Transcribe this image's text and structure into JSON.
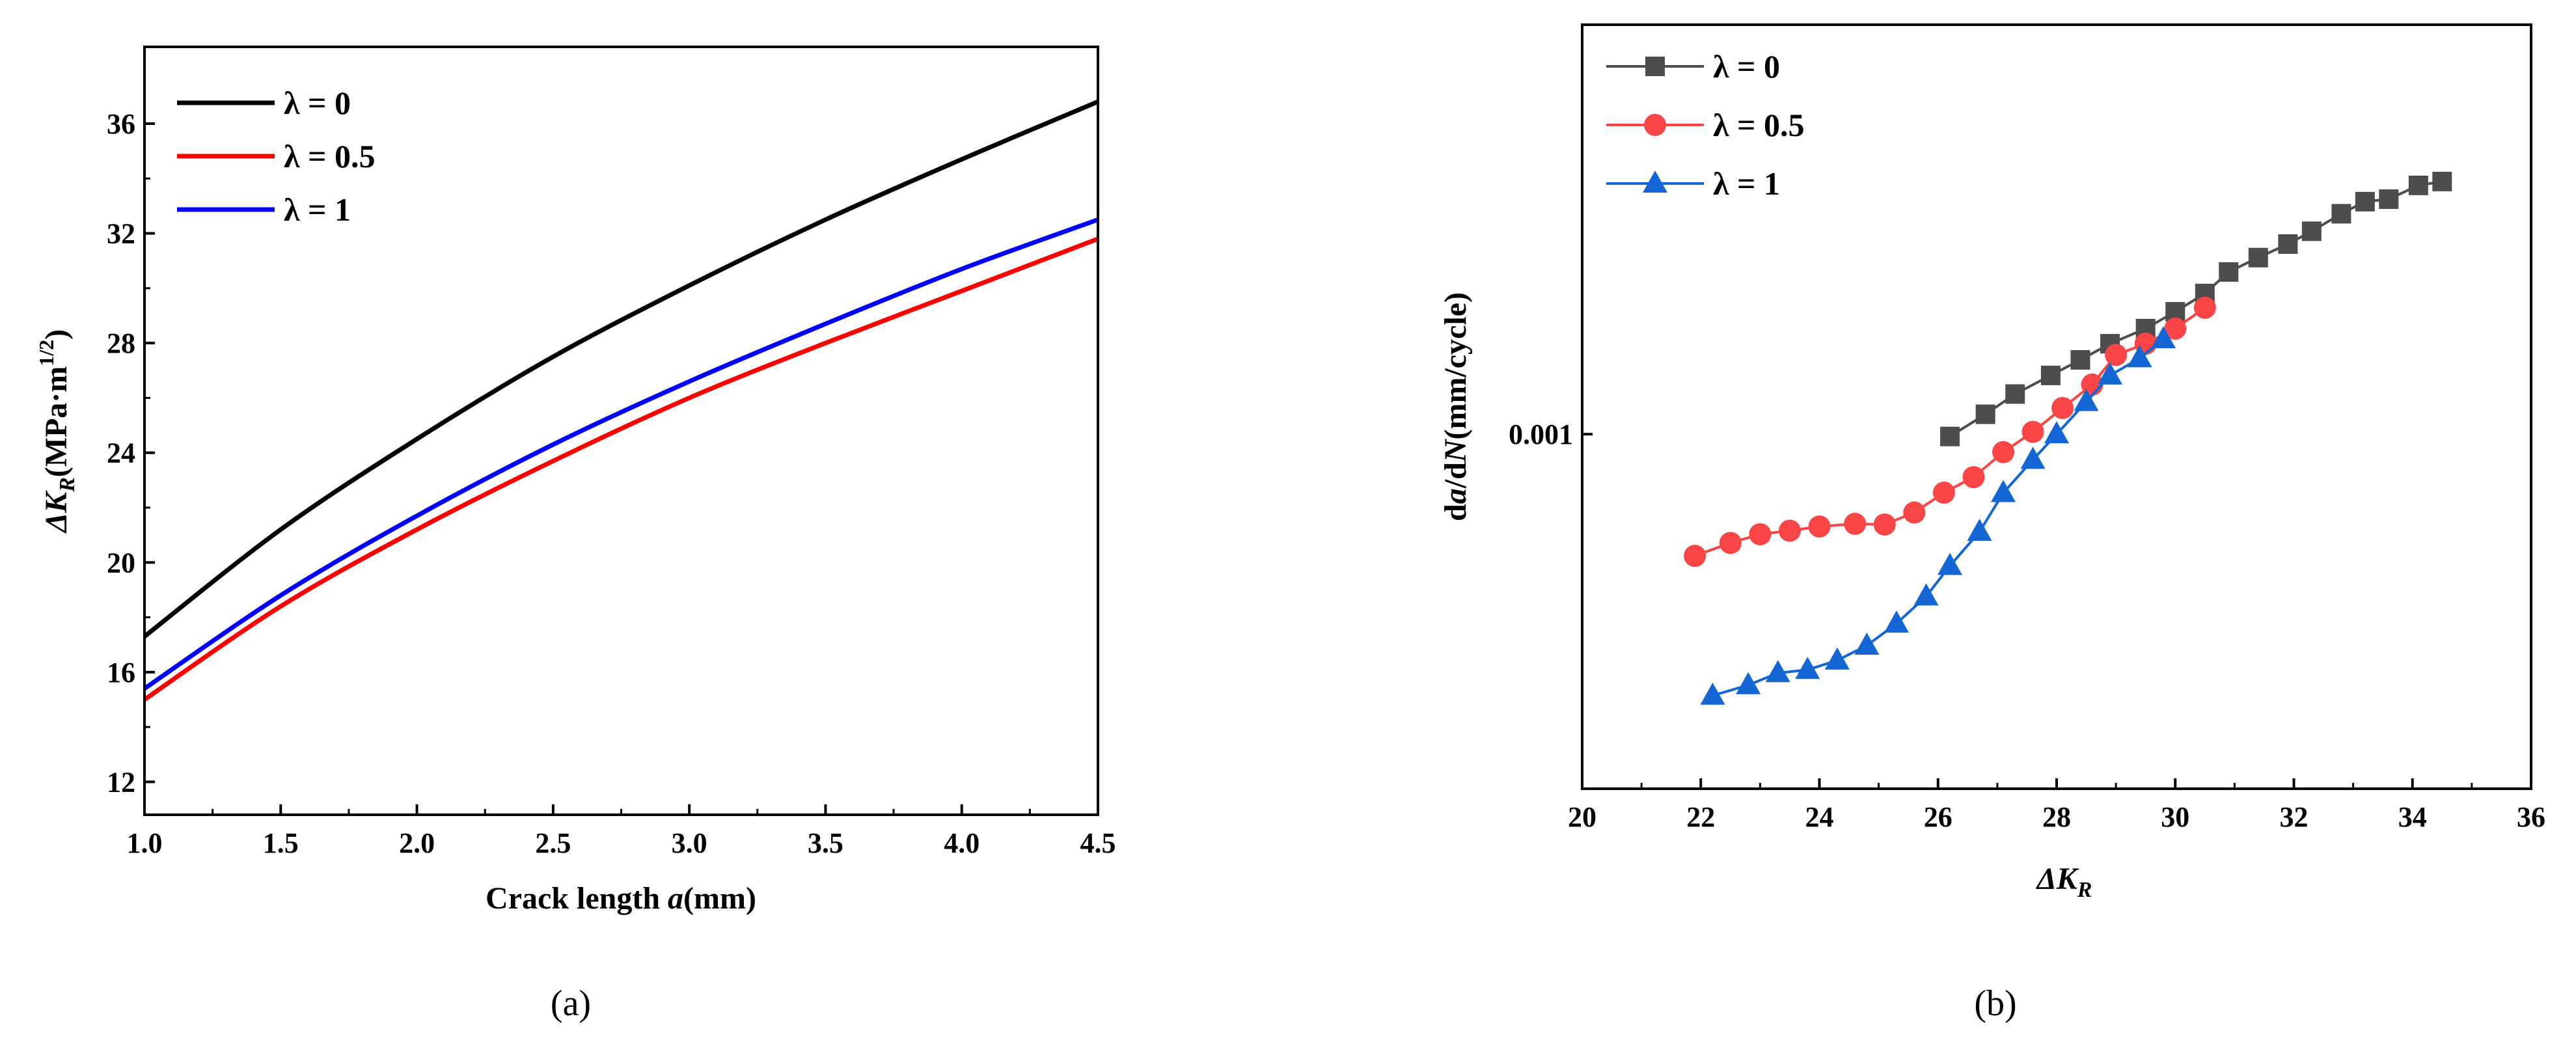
{
  "chart_data": [
    {
      "type": "line",
      "panel_label": "(a)",
      "xlabel": "Crack length a(mm)",
      "xlabel_parts": [
        "Crack length ",
        "a",
        "(mm)"
      ],
      "ylabel": "ΔK_R(MPa·m^{1/2})",
      "ylabel_parts": [
        "Δ",
        "K",
        "R",
        "(MPa·m",
        "1/2",
        ")"
      ],
      "xlim": [
        1.0,
        4.5
      ],
      "ylim": [
        10.8,
        38.8
      ],
      "xticks": [
        1.0,
        1.5,
        2.0,
        2.5,
        3.0,
        3.5,
        4.0,
        4.5
      ],
      "xtick_labels": [
        "1.0",
        "1.5",
        "2.0",
        "2.5",
        "3.0",
        "3.5",
        "4.0",
        "4.5"
      ],
      "yticks": [
        12,
        16,
        20,
        24,
        28,
        32,
        36
      ],
      "ytick_labels": [
        "12",
        "16",
        "20",
        "24",
        "28",
        "32",
        "36"
      ],
      "legend_position": "top-left",
      "series": [
        {
          "name": "λ = 0",
          "color": "#000000",
          "x": [
            1.0,
            1.5,
            2.0,
            2.5,
            3.0,
            3.5,
            4.0,
            4.5
          ],
          "y": [
            17.3,
            21.2,
            24.5,
            27.5,
            30.1,
            32.5,
            34.7,
            36.8
          ]
        },
        {
          "name": "λ = 0.5",
          "color": "#ff0000",
          "x": [
            1.0,
            1.5,
            2.0,
            2.5,
            3.0,
            3.5,
            4.0,
            4.5
          ],
          "y": [
            15.0,
            18.4,
            21.2,
            23.7,
            26.0,
            28.0,
            29.9,
            31.8
          ]
        },
        {
          "name": "λ = 1",
          "color": "#0000ff",
          "x": [
            1.0,
            1.5,
            2.0,
            2.5,
            3.0,
            3.5,
            4.0,
            4.5
          ],
          "y": [
            15.4,
            18.8,
            21.7,
            24.3,
            26.6,
            28.7,
            30.7,
            32.5
          ]
        }
      ]
    },
    {
      "type": "scatter",
      "panel_label": "(b)",
      "xlabel": "ΔK_R",
      "xlabel_parts": [
        "Δ",
        "K",
        "R"
      ],
      "ylabel": "da/dN(mm/cycle)",
      "ylabel_parts": [
        "d",
        "a",
        "/d",
        "N",
        "(mm/cycle)"
      ],
      "yscale": "log",
      "xlim": [
        20,
        36
      ],
      "ylim": [
        0.000215,
        0.0059
      ],
      "xticks": [
        20,
        22,
        24,
        26,
        28,
        30,
        32,
        34,
        36
      ],
      "xtick_labels": [
        "20",
        "22",
        "24",
        "26",
        "28",
        "30",
        "32",
        "34",
        "36"
      ],
      "yticks": [
        0.001
      ],
      "ytick_labels": [
        "0.001"
      ],
      "legend_position": "top-left",
      "series": [
        {
          "name": "λ = 0",
          "color": "#4d4d4d",
          "marker": "square",
          "x": [
            26.2,
            26.8,
            27.3,
            27.9,
            28.4,
            28.9,
            29.5,
            30.0,
            30.5,
            30.9,
            31.4,
            31.9,
            32.3,
            32.8,
            33.2,
            33.6,
            34.1,
            34.5
          ],
          "y": [
            0.00099,
            0.00109,
            0.00119,
            0.00129,
            0.00138,
            0.00148,
            0.00158,
            0.0017,
            0.00184,
            0.00202,
            0.00215,
            0.00228,
            0.00241,
            0.0026,
            0.00274,
            0.00277,
            0.00294,
            0.00299
          ]
        },
        {
          "name": "λ = 0.5",
          "color": "#f94545",
          "marker": "circle",
          "x": [
            21.9,
            22.5,
            23.0,
            23.5,
            24.0,
            24.6,
            25.1,
            25.6,
            26.1,
            26.6,
            27.1,
            27.6,
            28.1,
            28.6,
            29.0,
            29.5,
            30.0,
            30.5
          ],
          "y": [
            0.00059,
            0.000624,
            0.000648,
            0.000658,
            0.00067,
            0.000678,
            0.000676,
            0.000712,
            0.000776,
            0.00083,
            0.000925,
            0.00101,
            0.00112,
            0.00124,
            0.00141,
            0.00148,
            0.00158,
            0.00173
          ]
        },
        {
          "name": "λ = 1",
          "color": "#1466d4",
          "marker": "triangle",
          "x": [
            22.2,
            22.8,
            23.3,
            23.8,
            24.3,
            24.8,
            25.3,
            25.8,
            26.2,
            26.7,
            27.1,
            27.6,
            28.0,
            28.5,
            28.9,
            29.4,
            29.8
          ],
          "y": [
            0.000322,
            0.000337,
            0.000355,
            0.00036,
            0.000375,
            0.0004,
            0.00044,
            0.000495,
            0.000565,
            0.000655,
            0.000775,
            0.000895,
            0.001,
            0.00115,
            0.00129,
            0.00139,
            0.00151
          ]
        }
      ]
    }
  ]
}
